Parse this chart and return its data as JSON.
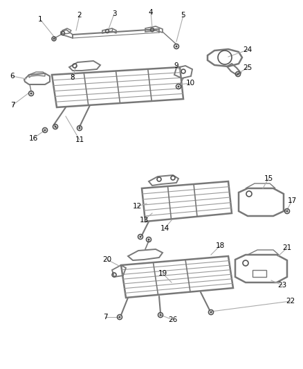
{
  "bg_color": "#ffffff",
  "line_color": "#555555",
  "text_color": "#000000",
  "callout_line_color": "#aaaaaa",
  "fig_width": 4.38,
  "fig_height": 5.33,
  "dpi": 100
}
